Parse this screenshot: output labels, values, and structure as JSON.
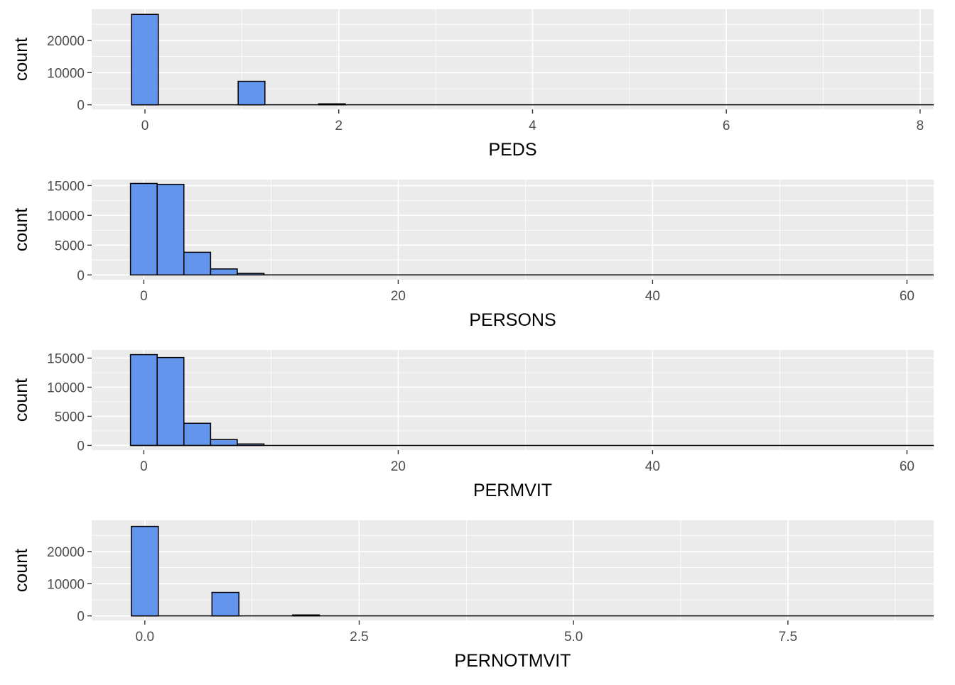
{
  "figure": {
    "colors": {
      "panel_background": "#ebebeb",
      "gridline": "#ffffff",
      "bar_fill": "#6495ed",
      "bar_stroke": "#000000",
      "tick_label": "#4d4d4d"
    }
  },
  "chart_data": [
    {
      "type": "bar",
      "histogram": true,
      "xlabel": "PEDS",
      "ylabel": "count",
      "xlim": [
        -0.55,
        8.14
      ],
      "ylim": [
        -1400,
        29700
      ],
      "x_ticks": [
        0,
        2,
        4,
        6,
        8
      ],
      "x_tick_labels": [
        "0",
        "2",
        "4",
        "6",
        "8"
      ],
      "y_ticks": [
        0,
        10000,
        20000
      ],
      "y_tick_labels": [
        "0",
        "10000",
        "20000"
      ],
      "bin_width": 0.276,
      "bins": [
        {
          "x": 0.0,
          "count": 28100
        },
        {
          "x": 1.1,
          "count": 7300
        },
        {
          "x": 1.93,
          "count": 300
        }
      ],
      "baseline_range": [
        -0.14,
        8.14
      ],
      "grid": true,
      "legend": "none"
    },
    {
      "type": "bar",
      "histogram": true,
      "xlabel": "PERSONS",
      "ylabel": "count",
      "xlim": [
        -4.1,
        62.1
      ],
      "ylim": [
        -800,
        16000
      ],
      "x_ticks": [
        0,
        20,
        40,
        60
      ],
      "x_tick_labels": [
        "0",
        "20",
        "40",
        "60"
      ],
      "y_ticks": [
        0,
        5000,
        10000,
        15000
      ],
      "y_tick_labels": [
        "0",
        "5000",
        "10000",
        "15000"
      ],
      "bin_width": 2.1,
      "bins": [
        {
          "x": 0.0,
          "count": 15350
        },
        {
          "x": 2.1,
          "count": 15200
        },
        {
          "x": 4.2,
          "count": 3800
        },
        {
          "x": 6.3,
          "count": 1000
        },
        {
          "x": 8.4,
          "count": 250
        }
      ],
      "baseline_range": [
        -1.05,
        62.1
      ],
      "grid": true,
      "legend": "none"
    },
    {
      "type": "bar",
      "histogram": true,
      "xlabel": "PERMVIT",
      "ylabel": "count",
      "xlim": [
        -4.1,
        62.1
      ],
      "ylim": [
        -800,
        16400
      ],
      "x_ticks": [
        0,
        20,
        40,
        60
      ],
      "x_tick_labels": [
        "0",
        "20",
        "40",
        "60"
      ],
      "y_ticks": [
        0,
        5000,
        10000,
        15000
      ],
      "y_tick_labels": [
        "0",
        "5000",
        "10000",
        "15000"
      ],
      "bin_width": 2.1,
      "bins": [
        {
          "x": 0.0,
          "count": 15600
        },
        {
          "x": 2.1,
          "count": 15100
        },
        {
          "x": 4.2,
          "count": 3800
        },
        {
          "x": 6.3,
          "count": 1000
        },
        {
          "x": 8.4,
          "count": 250
        }
      ],
      "baseline_range": [
        -1.05,
        62.1
      ],
      "grid": true,
      "legend": "none"
    },
    {
      "type": "bar",
      "histogram": true,
      "xlabel": "PERNOTMVIT",
      "ylabel": "count",
      "xlim": [
        -0.62,
        9.2
      ],
      "ylim": [
        -1400,
        29700
      ],
      "x_ticks": [
        0,
        2.5,
        5,
        7.5
      ],
      "x_tick_labels": [
        "0.0",
        "2.5",
        "5.0",
        "7.5"
      ],
      "y_ticks": [
        0,
        10000,
        20000
      ],
      "y_tick_labels": [
        "0",
        "10000",
        "20000"
      ],
      "bin_width": 0.314,
      "bins": [
        {
          "x": 0.0,
          "count": 27800
        },
        {
          "x": 0.94,
          "count": 7300
        },
        {
          "x": 1.88,
          "count": 300
        }
      ],
      "baseline_range": [
        -0.157,
        9.2
      ],
      "grid": true,
      "legend": "none"
    }
  ]
}
